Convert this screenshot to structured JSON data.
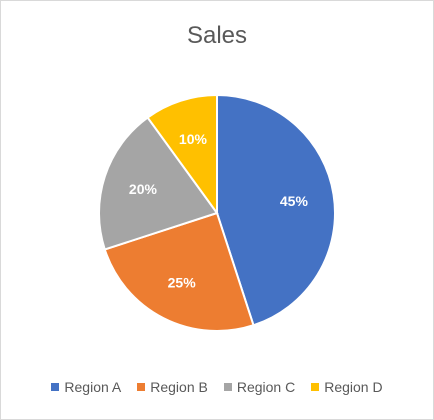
{
  "chart_data": {
    "type": "pie",
    "title": "Sales",
    "categories": [
      "Region A",
      "Region B",
      "Region C",
      "Region D"
    ],
    "values": [
      45,
      25,
      20,
      10
    ],
    "data_labels": [
      "45%",
      "25%",
      "20%",
      "10%"
    ],
    "colors": [
      "#4472C4",
      "#ED7D31",
      "#A5A5A5",
      "#FFC000"
    ],
    "legend_position": "bottom"
  }
}
